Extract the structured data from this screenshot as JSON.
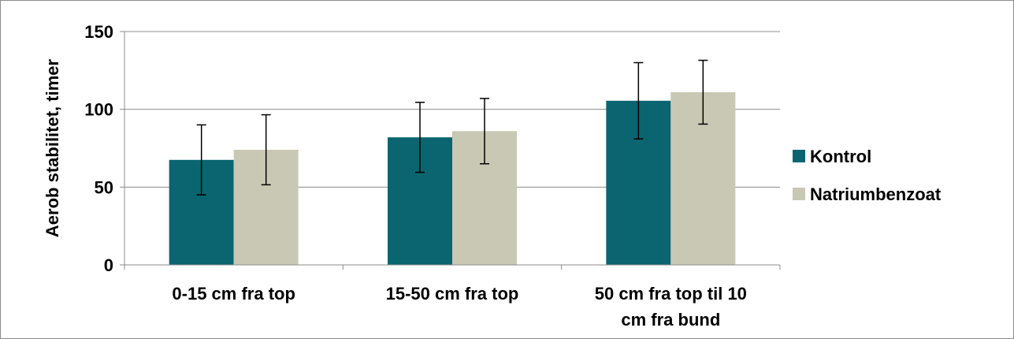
{
  "chart_data": {
    "type": "bar",
    "title": "",
    "xlabel": "",
    "ylabel": "Aerob stabilitet, timer",
    "ylim": [
      0,
      150
    ],
    "yticks": [
      "0",
      "50",
      "100",
      "150"
    ],
    "grid": true,
    "legend_position": "right",
    "categories": [
      [
        "0-15 cm fra top"
      ],
      [
        "15-50 cm fra top"
      ],
      [
        "50 cm fra top til 10",
        "cm fra bund"
      ]
    ],
    "series": [
      {
        "name": "Kontrol",
        "color": "#0a6570",
        "values": [
          67.5,
          82,
          105.5
        ],
        "error": [
          22.5,
          22.5,
          24.5
        ]
      },
      {
        "name": "Natriumbenzoat",
        "color": "#c8c8b4",
        "values": [
          74,
          86,
          111
        ],
        "error": [
          22.5,
          21,
          20.5
        ]
      }
    ]
  }
}
